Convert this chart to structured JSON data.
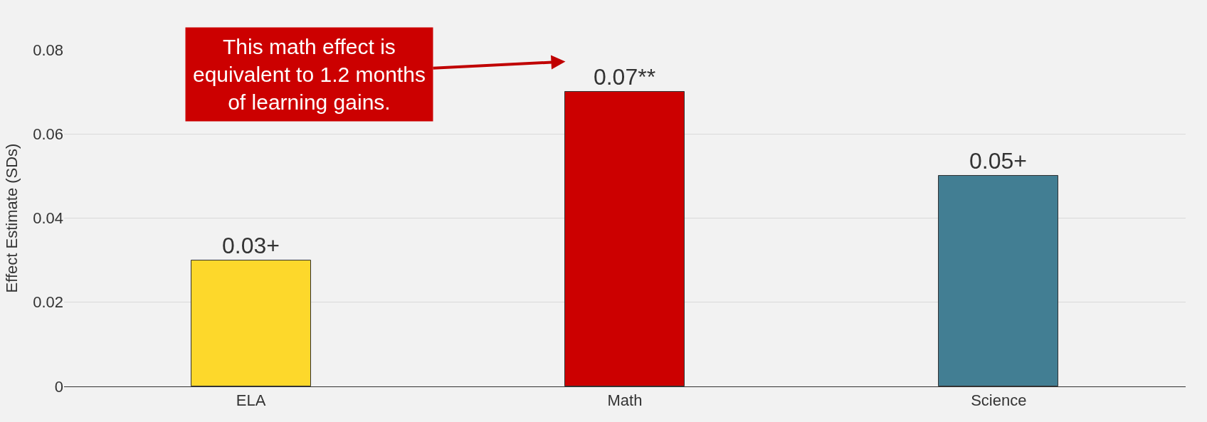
{
  "chart_data": {
    "type": "bar",
    "ylabel": "Effect Estimate (SDs)",
    "categories": [
      "ELA",
      "Math",
      "Science"
    ],
    "values": [
      0.03,
      0.07,
      0.05
    ],
    "colors": [
      "#fdd82b",
      "#cc0000",
      "#427e93"
    ],
    "value_labels": [
      "0.03+",
      "0.07**",
      "0.05+"
    ],
    "ylim": [
      0,
      0.08
    ],
    "yticks": [
      0,
      0.02,
      0.04,
      0.06,
      0.08
    ],
    "grid": "y",
    "legend": false,
    "annotations": [
      "This math effect is\nequivalent to 1.2 months\nof learning gains."
    ]
  }
}
